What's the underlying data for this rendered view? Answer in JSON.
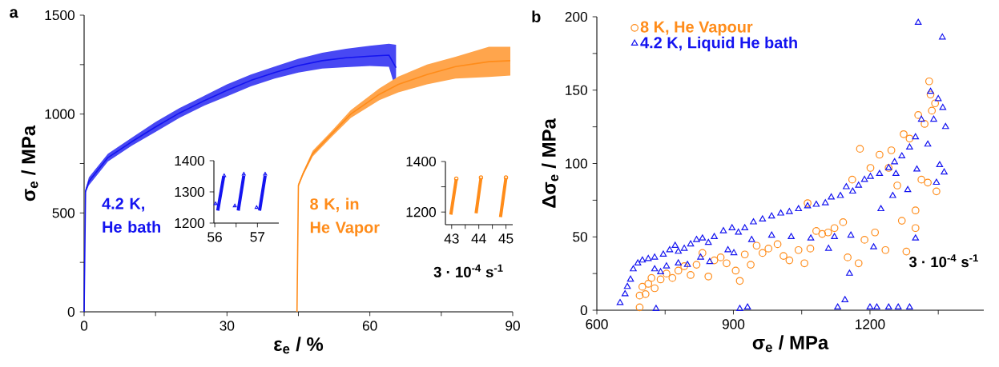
{
  "chart_data": [
    {
      "type": "line",
      "title": "a",
      "xlabel": "ε$_{e}$ / %",
      "ylabel": "σ$_{e}$ / MPa",
      "xlim": [
        0,
        90
      ],
      "ylim": [
        0,
        1500
      ],
      "xticks": [
        0,
        {
          "value": 15,
          "label": null
        },
        30,
        {
          "value": 45,
          "label": null
        },
        60,
        {
          "value": 75,
          "label": null
        },
        90
      ],
      "yticks": [
        0,
        {
          "value": 250,
          "label": null
        },
        500,
        {
          "value": 750,
          "label": null
        },
        1000,
        {
          "value": 1250,
          "label": null
        },
        1500
      ],
      "annotations": [
        "3 · 10$^{-4}$ s$^{-1}$"
      ],
      "series": [
        {
          "name": "4.2 K, He bath",
          "color": "#1414f0",
          "x": [
            0,
            0.3,
            1,
            5,
            10,
            15,
            20,
            25,
            30,
            35,
            40,
            45,
            50,
            55,
            60,
            64,
            65.5
          ],
          "values": [
            0,
            610,
            660,
            780,
            860,
            935,
            1005,
            1065,
            1120,
            1170,
            1210,
            1245,
            1270,
            1285,
            1293,
            1298,
            1235
          ],
          "lower": [
            0,
            600,
            640,
            760,
            840,
            910,
            980,
            1040,
            1090,
            1140,
            1180,
            1210,
            1230,
            1237,
            1243,
            1239,
            1120
          ],
          "upper": [
            0,
            620,
            680,
            800,
            880,
            960,
            1030,
            1090,
            1150,
            1200,
            1240,
            1280,
            1310,
            1330,
            1345,
            1355,
            1350
          ]
        },
        {
          "name": "8 K, in He Vapor",
          "color": "#ff8c1a",
          "x": [
            44.7,
            45,
            46,
            48,
            52,
            56,
            62,
            66,
            72,
            78,
            85,
            89.5
          ],
          "values": [
            0,
            640,
            700,
            800,
            900,
            1000,
            1100,
            1150,
            1200,
            1240,
            1265,
            1270
          ],
          "lower": [
            0,
            630,
            690,
            785,
            885,
            980,
            1070,
            1110,
            1150,
            1180,
            1188,
            1195
          ],
          "upper": [
            0,
            650,
            710,
            815,
            915,
            1020,
            1130,
            1190,
            1250,
            1290,
            1340,
            1340
          ]
        }
      ]
    },
    {
      "type": "line",
      "xlim": [
        55.98,
        57.5
      ],
      "ylim": [
        1200,
        1400
      ],
      "xticks": [
        56,
        {
          "value": 56.5,
          "label": null
        },
        57
      ],
      "yticks": [
        1200,
        1300,
        1400
      ],
      "series": [
        {
          "color": "#1414f0",
          "x": [
            56.07,
            56.21,
            56.4,
            56.55,
            56.68,
            56.9,
            57.05,
            57.18
          ],
          "values": [
            1240,
            1350,
            null,
            1240,
            1352,
            null,
            1240,
            1352
          ]
        },
        {
          "type": "scatter",
          "marker": "triangle",
          "color": "#1414f0",
          "x": [
            56.02,
            56.47,
            56.98,
            56.22,
            56.68,
            57.18
          ],
          "values": [
            1262,
            1255,
            1250,
            1352,
            1357,
            1357
          ]
        }
      ]
    },
    {
      "type": "line",
      "xlim": [
        42.77,
        45.25
      ],
      "ylim": [
        1150,
        1400
      ],
      "xticks": [
        43,
        {
          "value": 43.5,
          "label": null
        },
        44,
        {
          "value": 44.5,
          "label": null
        },
        45
      ],
      "yticks": [
        1200,
        {
          "value": 1300,
          "label": null
        },
        1400
      ],
      "series": [
        {
          "color": "#ff8c1a",
          "x": [
            42.97,
            43.17,
            43.5,
            43.9,
            44.08,
            44.4,
            44.8,
            45.0
          ],
          "values": [
            1190,
            1330,
            null,
            1195,
            1335,
            null,
            1180,
            1335
          ]
        },
        {
          "type": "scatter",
          "marker": "circle",
          "color": "#ff8c1a",
          "x": [
            43.17,
            44.08,
            45.0
          ],
          "values": [
            1332,
            1337,
            1337
          ]
        }
      ]
    },
    {
      "type": "scatter",
      "title": "b",
      "xlabel": "σ$_{e}$ / MPa",
      "ylabel": "Δσ$_{e}$ / MPa",
      "xlim": [
        600,
        1450
      ],
      "ylim": [
        0,
        200
      ],
      "xticks": [
        600,
        {
          "value": 750,
          "label": null
        },
        900,
        {
          "value": 1050,
          "label": null
        },
        1200,
        {
          "value": 1350,
          "label": null
        }
      ],
      "yticks": [
        0,
        {
          "value": 25,
          "label": null
        },
        50,
        {
          "value": 75,
          "label": null
        },
        100,
        {
          "value": 125,
          "label": null
        },
        150,
        {
          "value": 175,
          "label": null
        },
        200
      ],
      "legend": "top left",
      "annotations": [
        "3 · 10$^{-4}$ s$^{-1}$"
      ],
      "series": [
        {
          "name": "8 K, He Vapour",
          "marker": "circle",
          "color": "#ff8c1a",
          "x": [
            694,
            694,
            700,
            707,
            713,
            720,
            727,
            740,
            753,
            766,
            779,
            792,
            806,
            819,
            832,
            845,
            858,
            872,
            885,
            905,
            914,
            925,
            938,
            951,
            964,
            977,
            997,
            1010,
            1023,
            1043,
            1056,
            1069,
            1063,
            1082,
            1095,
            1108,
            1122,
            1141,
            1151,
            1161,
            1175,
            1178,
            1188,
            1201,
            1211,
            1221,
            1234,
            1241,
            1247,
            1260,
            1270,
            1274,
            1280,
            1287,
            1300,
            1306,
            1313,
            1320,
            1330,
            1336,
            1333,
            1343,
            1346,
            1327,
            1300
          ],
          "values": [
            2,
            10,
            16,
            11,
            18,
            22,
            15,
            21,
            25,
            22,
            27,
            30,
            24,
            31,
            39,
            23,
            34,
            36,
            32,
            27,
            20,
            38,
            31,
            44,
            39,
            42,
            45,
            37,
            34,
            41,
            32,
            42,
            73,
            54,
            52,
            53,
            56,
            60,
            36,
            89,
            32,
            110,
            48,
            97,
            53,
            106,
            41,
            97,
            109,
            85,
            61,
            120,
            40,
            117,
            56,
            133,
            89,
            127,
            156,
            136,
            147,
            141,
            81,
            87,
            68
          ]
        },
        {
          "name": "4.2 K, Liquid He bath",
          "marker": "triangle",
          "color": "#1414f0",
          "x": [
            651,
            662,
            667,
            674,
            680,
            690,
            700,
            713,
            727,
            746,
            760,
            772,
            779,
            792,
            806,
            819,
            832,
            845,
            858,
            878,
            897,
            911,
            925,
            944,
            964,
            984,
            1004,
            1023,
            1043,
            1063,
            1082,
            1102,
            1115,
            1135,
            1148,
            1162,
            1175,
            1188,
            1201,
            1221,
            1241,
            1254,
            1270,
            1287,
            1300,
            1313,
            1327,
            1340,
            1350,
            1360,
            1366,
            1363,
            1353,
            1346,
            1333,
            1306,
            1359,
            727,
            740,
            753,
            779,
            799,
            828,
            848,
            888,
            901,
            940,
            984,
            1027,
            1070,
            1109,
            1122,
            1158,
            1155,
            1208,
            1224,
            1250,
            1283,
            1300,
            1303,
            1257,
            730,
            914,
            931,
            1129,
            1145,
            1200,
            1215,
            1241,
            1262,
            1287
          ],
          "values": [
            5,
            11,
            16,
            21,
            28,
            32,
            34,
            35,
            36,
            38,
            41,
            44,
            40,
            42,
            45,
            48,
            49,
            46,
            50,
            54,
            56,
            53,
            56,
            60,
            62,
            64,
            66,
            67,
            69,
            71,
            72,
            73,
            77,
            78,
            84,
            81,
            85,
            89,
            91,
            93,
            97,
            101,
            105,
            111,
            118,
            130,
            113,
            130,
            144,
            138,
            125,
            94,
            99,
            87,
            149,
            196,
            186,
            28,
            26,
            30,
            32,
            31,
            36,
            33,
            41,
            39,
            48,
            51,
            50,
            49,
            42,
            50,
            51,
            25,
            43,
            69,
            78,
            82,
            49,
            96,
            93,
            1,
            1,
            2,
            2,
            7,
            2,
            2,
            2,
            2,
            2
          ]
        }
      ]
    }
  ]
}
